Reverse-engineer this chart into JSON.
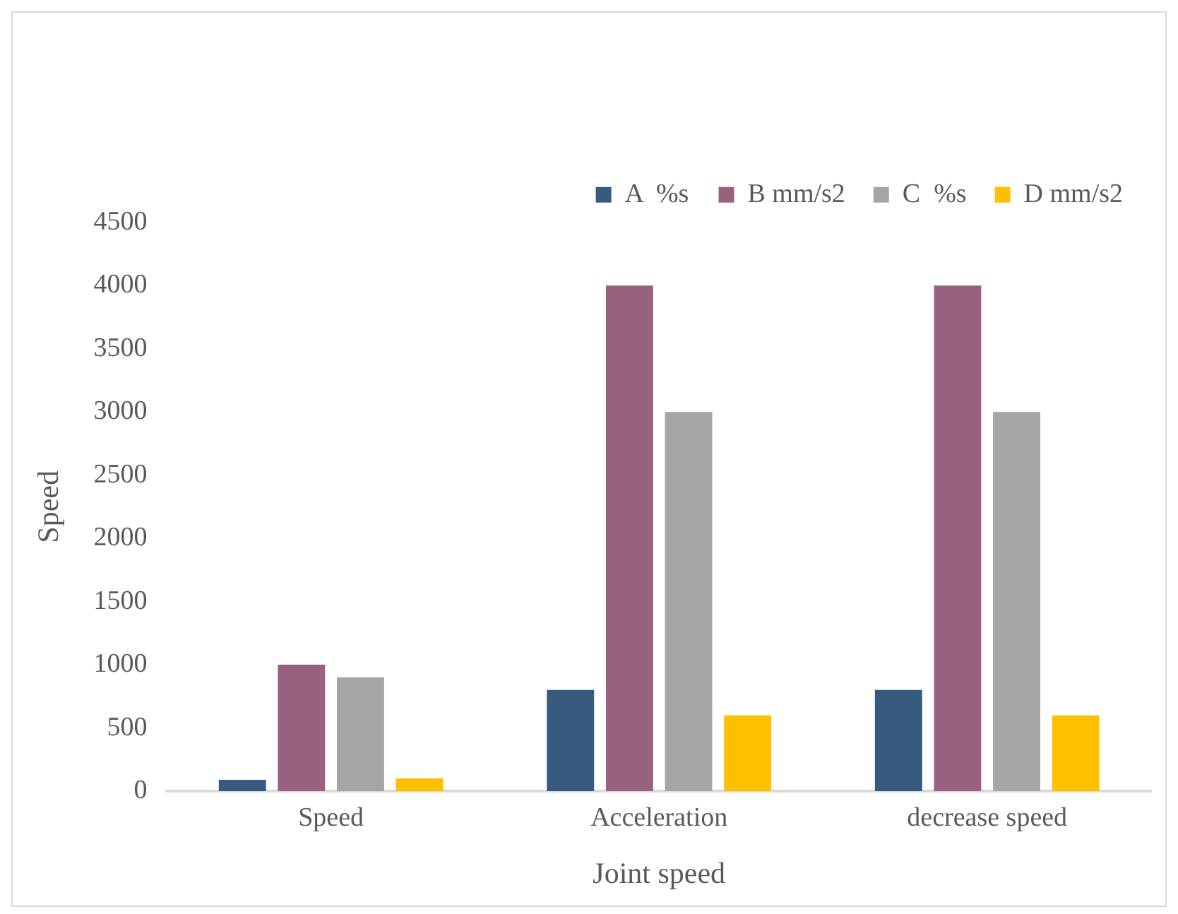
{
  "chart_data": {
    "type": "bar",
    "xlabel": "Joint speed",
    "ylabel": "Speed",
    "categories": [
      "Speed",
      "Acceleration",
      "decrease speed"
    ],
    "series": [
      {
        "name": "A  %s",
        "color": "#375a7f",
        "values": [
          90,
          800,
          800
        ]
      },
      {
        "name": "B mm/s2",
        "color": "#98627e",
        "values": [
          1000,
          4000,
          4000
        ]
      },
      {
        "name": "C  %s",
        "color": "#a5a5a5",
        "values": [
          900,
          3000,
          3000
        ]
      },
      {
        "name": "D mm/s2",
        "color": "#ffc000",
        "values": [
          100,
          600,
          600
        ]
      }
    ],
    "ylim": [
      0,
      4500
    ],
    "yticks": [
      0,
      500,
      1000,
      1500,
      2000,
      2500,
      3000,
      3500,
      4000,
      4500
    ],
    "grid": false,
    "legend": "top right"
  }
}
